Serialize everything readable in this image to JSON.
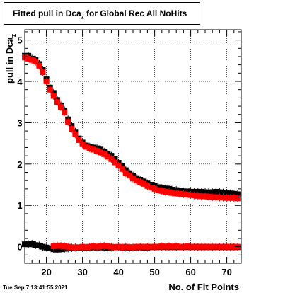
{
  "title": {
    "main": "Fitted pull in Dca",
    "sub": "z",
    "suffix": " for Global Rec All NoHits"
  },
  "timestamp": "Tue Sep  7 13:41:55 2021",
  "chart_data": {
    "type": "scatter",
    "xlabel": "No. of Fit Points",
    "ylabel": {
      "main": "pull in Dca",
      "sub": "z"
    },
    "xlim": [
      14,
      74
    ],
    "ylim": [
      -0.4,
      5.25
    ],
    "xticks": [
      20,
      30,
      40,
      50,
      60,
      70
    ],
    "yticks": [
      0,
      1,
      2,
      3,
      4,
      5
    ],
    "grid": true,
    "colors": {
      "black_series": "#000000",
      "red_series": "#ff0000"
    },
    "series": [
      {
        "color": "#000000",
        "points": [
          [
            14,
            4.62
          ],
          [
            15,
            4.62
          ],
          [
            16,
            4.55
          ],
          [
            17,
            4.52
          ],
          [
            18,
            4.42
          ],
          [
            19,
            4.28
          ],
          [
            20,
            4.05
          ],
          [
            21,
            3.85
          ],
          [
            22,
            3.72
          ],
          [
            23,
            3.55
          ],
          [
            24,
            3.42
          ],
          [
            25,
            3.3
          ],
          [
            26,
            3.08
          ],
          [
            27,
            2.92
          ],
          [
            28,
            2.78
          ],
          [
            29,
            2.62
          ],
          [
            30,
            2.52
          ],
          [
            31,
            2.45
          ],
          [
            32,
            2.42
          ],
          [
            33,
            2.4
          ],
          [
            34,
            2.38
          ],
          [
            35,
            2.35
          ],
          [
            36,
            2.3
          ],
          [
            37,
            2.25
          ],
          [
            38,
            2.2
          ],
          [
            39,
            2.12
          ],
          [
            40,
            2.03
          ],
          [
            41,
            1.95
          ],
          [
            42,
            1.85
          ],
          [
            43,
            1.78
          ],
          [
            44,
            1.72
          ],
          [
            45,
            1.66
          ],
          [
            46,
            1.62
          ],
          [
            47,
            1.58
          ],
          [
            48,
            1.53
          ],
          [
            49,
            1.5
          ],
          [
            50,
            1.47
          ],
          [
            51,
            1.44
          ],
          [
            52,
            1.42
          ],
          [
            53,
            1.41
          ],
          [
            54,
            1.4
          ],
          [
            55,
            1.38
          ],
          [
            56,
            1.37
          ],
          [
            57,
            1.35
          ],
          [
            58,
            1.34
          ],
          [
            59,
            1.34
          ],
          [
            60,
            1.33
          ],
          [
            61,
            1.33
          ],
          [
            62,
            1.33
          ],
          [
            63,
            1.33
          ],
          [
            64,
            1.32
          ],
          [
            65,
            1.32
          ],
          [
            66,
            1.32
          ],
          [
            67,
            1.33
          ],
          [
            68,
            1.32
          ],
          [
            69,
            1.31
          ],
          [
            70,
            1.3
          ],
          [
            71,
            1.29
          ],
          [
            72,
            1.28
          ],
          [
            73,
            1.27
          ],
          [
            14,
            0.06
          ],
          [
            15,
            0.06
          ],
          [
            16,
            0.07
          ],
          [
            17,
            0.04
          ],
          [
            18,
            0.03
          ],
          [
            19,
            0.0
          ],
          [
            20,
            -0.02
          ],
          [
            21,
            -0.04
          ],
          [
            22,
            -0.06
          ],
          [
            23,
            -0.07
          ],
          [
            24,
            -0.06
          ],
          [
            25,
            -0.05
          ],
          [
            26,
            -0.04
          ],
          [
            27,
            -0.03
          ],
          [
            28,
            -0.02
          ],
          [
            29,
            -0.02
          ],
          [
            30,
            -0.03
          ],
          [
            31,
            -0.03
          ],
          [
            32,
            -0.02
          ],
          [
            33,
            -0.01
          ],
          [
            34,
            -0.02
          ],
          [
            35,
            -0.01
          ],
          [
            36,
            -0.02
          ],
          [
            37,
            -0.03
          ],
          [
            38,
            -0.02
          ],
          [
            39,
            -0.01
          ],
          [
            40,
            -0.01
          ],
          [
            41,
            -0.02
          ],
          [
            42,
            -0.02
          ],
          [
            43,
            -0.03
          ],
          [
            44,
            -0.02
          ],
          [
            45,
            -0.02
          ],
          [
            46,
            -0.01
          ],
          [
            47,
            -0.02
          ],
          [
            48,
            -0.02
          ],
          [
            49,
            -0.01
          ],
          [
            50,
            -0.01
          ],
          [
            51,
            -0.01
          ],
          [
            52,
            0.0
          ],
          [
            53,
            -0.01
          ],
          [
            54,
            -0.01
          ],
          [
            55,
            -0.01
          ],
          [
            56,
            -0.01
          ],
          [
            57,
            -0.01
          ],
          [
            58,
            -0.01
          ],
          [
            59,
            -0.01
          ],
          [
            60,
            -0.01
          ],
          [
            61,
            0.0
          ],
          [
            62,
            -0.01
          ],
          [
            63,
            -0.01
          ],
          [
            64,
            -0.01
          ],
          [
            65,
            -0.01
          ],
          [
            66,
            -0.01
          ],
          [
            67,
            -0.01
          ],
          [
            68,
            -0.01
          ],
          [
            69,
            -0.01
          ],
          [
            70,
            -0.01
          ],
          [
            71,
            -0.01
          ],
          [
            72,
            -0.01
          ],
          [
            73,
            -0.01
          ]
        ]
      },
      {
        "color": "#ff0000",
        "points": [
          [
            14,
            4.58
          ],
          [
            15,
            4.55
          ],
          [
            16,
            4.52
          ],
          [
            17,
            4.48
          ],
          [
            18,
            4.38
          ],
          [
            19,
            4.22
          ],
          [
            20,
            4.0
          ],
          [
            21,
            3.8
          ],
          [
            22,
            3.65
          ],
          [
            23,
            3.5
          ],
          [
            24,
            3.38
          ],
          [
            25,
            3.25
          ],
          [
            26,
            3.02
          ],
          [
            27,
            2.85
          ],
          [
            28,
            2.72
          ],
          [
            29,
            2.58
          ],
          [
            30,
            2.48
          ],
          [
            31,
            2.42
          ],
          [
            32,
            2.38
          ],
          [
            33,
            2.35
          ],
          [
            34,
            2.32
          ],
          [
            35,
            2.28
          ],
          [
            36,
            2.24
          ],
          [
            37,
            2.18
          ],
          [
            38,
            2.12
          ],
          [
            39,
            2.04
          ],
          [
            40,
            1.96
          ],
          [
            41,
            1.88
          ],
          [
            42,
            1.78
          ],
          [
            43,
            1.72
          ],
          [
            44,
            1.65
          ],
          [
            45,
            1.6
          ],
          [
            46,
            1.56
          ],
          [
            47,
            1.52
          ],
          [
            48,
            1.47
          ],
          [
            49,
            1.43
          ],
          [
            50,
            1.4
          ],
          [
            51,
            1.37
          ],
          [
            52,
            1.35
          ],
          [
            53,
            1.33
          ],
          [
            54,
            1.32
          ],
          [
            55,
            1.3
          ],
          [
            56,
            1.29
          ],
          [
            57,
            1.28
          ],
          [
            58,
            1.27
          ],
          [
            59,
            1.26
          ],
          [
            60,
            1.25
          ],
          [
            61,
            1.24
          ],
          [
            62,
            1.23
          ],
          [
            63,
            1.22
          ],
          [
            64,
            1.22
          ],
          [
            65,
            1.21
          ],
          [
            66,
            1.2
          ],
          [
            67,
            1.2
          ],
          [
            68,
            1.19
          ],
          [
            69,
            1.19
          ],
          [
            70,
            1.18
          ],
          [
            71,
            1.18
          ],
          [
            72,
            1.18
          ],
          [
            73,
            1.17
          ],
          [
            22,
            0.01
          ],
          [
            23,
            0.03
          ],
          [
            24,
            0.02
          ],
          [
            25,
            0.01
          ],
          [
            26,
            0.0
          ],
          [
            27,
            -0.01
          ],
          [
            28,
            -0.02
          ],
          [
            29,
            -0.01
          ],
          [
            30,
            0.0
          ],
          [
            31,
            -0.01
          ],
          [
            32,
            0.0
          ],
          [
            33,
            0.01
          ],
          [
            34,
            0.0
          ],
          [
            35,
            0.01
          ],
          [
            36,
            0.02
          ],
          [
            37,
            0.01
          ],
          [
            38,
            0.0
          ],
          [
            39,
            -0.01
          ],
          [
            40,
            0.0
          ],
          [
            41,
            -0.01
          ],
          [
            42,
            0.0
          ],
          [
            43,
            -0.01
          ],
          [
            44,
            -0.01
          ],
          [
            45,
            0.0
          ],
          [
            46,
            0.0
          ],
          [
            47,
            0.0
          ],
          [
            48,
            0.0
          ],
          [
            49,
            0.0
          ],
          [
            50,
            0.0
          ],
          [
            51,
            0.0
          ],
          [
            52,
            0.01
          ],
          [
            53,
            0.0
          ],
          [
            54,
            0.01
          ],
          [
            55,
            0.0
          ],
          [
            56,
            0.01
          ],
          [
            57,
            0.0
          ],
          [
            58,
            0.0
          ],
          [
            59,
            0.01
          ],
          [
            60,
            0.0
          ],
          [
            61,
            0.0
          ],
          [
            62,
            0.0
          ],
          [
            63,
            0.0
          ],
          [
            64,
            0.0
          ],
          [
            65,
            0.0
          ],
          [
            66,
            0.0
          ],
          [
            67,
            0.0
          ],
          [
            68,
            0.0
          ],
          [
            69,
            0.0
          ],
          [
            70,
            0.0
          ],
          [
            71,
            0.0
          ],
          [
            72,
            0.0
          ],
          [
            73,
            0.0
          ]
        ]
      }
    ]
  }
}
